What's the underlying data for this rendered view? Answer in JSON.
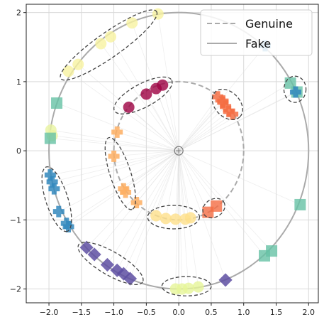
{
  "chart_data": {
    "type": "scatter",
    "title": "",
    "xlabel": "",
    "ylabel": "",
    "xlim": [
      -2.35,
      2.15
    ],
    "ylim": [
      -2.2,
      2.12
    ],
    "grid": true,
    "legend_placement": "top-right",
    "x_ticks": [
      {
        "value": -2.0,
        "label": "−2.0"
      },
      {
        "value": -1.5,
        "label": "−1.5"
      },
      {
        "value": -1.0,
        "label": "−1.0"
      },
      {
        "value": -0.5,
        "label": "−0.5"
      },
      {
        "value": 0.0,
        "label": "0.0"
      },
      {
        "value": 0.5,
        "label": "0.5"
      },
      {
        "value": 1.0,
        "label": "1.0"
      },
      {
        "value": 1.5,
        "label": "1.5"
      },
      {
        "value": 2.0,
        "label": "2.0"
      }
    ],
    "y_ticks": [
      {
        "value": -2,
        "label": "−2"
      },
      {
        "value": -1,
        "label": "−1"
      },
      {
        "value": 0,
        "label": "0"
      },
      {
        "value": 1,
        "label": "1"
      },
      {
        "value": 2,
        "label": "2"
      }
    ],
    "legend": [
      {
        "label": "Genuine",
        "style": "dashed",
        "color": "#aaaaaa"
      },
      {
        "label": "Fake",
        "style": "solid",
        "color": "#aaaaaa"
      }
    ],
    "circles": [
      {
        "name": "Genuine",
        "radius": 1.0,
        "style": "dashed",
        "color": "#aaaaaa"
      },
      {
        "name": "Fake",
        "radius": 2.0,
        "style": "solid",
        "color": "#aaaaaa"
      }
    ],
    "center_marker": {
      "x": 0,
      "y": 0
    },
    "point_groups": [
      {
        "marker": "circle",
        "color": "#f7f3a0",
        "points": [
          [
            -1.7,
            1.15
          ],
          [
            -1.55,
            1.25
          ],
          [
            -1.2,
            1.55
          ],
          [
            -1.05,
            1.65
          ],
          [
            -0.72,
            1.85
          ],
          [
            -0.32,
            1.98
          ]
        ]
      },
      {
        "marker": "circle",
        "color": "#e8f4a0",
        "points": [
          [
            -1.97,
            0.3
          ],
          [
            -1.95,
            0.22
          ]
        ]
      },
      {
        "marker": "square",
        "color": "#66c2a5",
        "points": [
          [
            -1.88,
            0.69
          ],
          [
            -1.98,
            0.18
          ],
          [
            1.72,
            0.98
          ],
          [
            1.82,
            0.85
          ],
          [
            1.87,
            -0.78
          ],
          [
            1.43,
            -1.45
          ],
          [
            1.32,
            -1.52
          ]
        ]
      },
      {
        "marker": "circle",
        "color": "#9e0142",
        "points": [
          [
            -0.77,
            0.63
          ],
          [
            -0.5,
            0.82
          ],
          [
            -0.35,
            0.9
          ],
          [
            -0.25,
            0.95
          ]
        ]
      },
      {
        "marker": "plus",
        "color": "#fdae61",
        "points": [
          [
            -0.95,
            0.27
          ],
          [
            -1.0,
            -0.08
          ],
          [
            -0.85,
            -0.55
          ],
          [
            -0.82,
            -0.6
          ],
          [
            -0.65,
            -0.75
          ]
        ]
      },
      {
        "marker": "plus",
        "color": "#f46d43",
        "points": [
          [
            0.6,
            0.78
          ],
          [
            0.68,
            0.7
          ],
          [
            0.72,
            0.64
          ],
          [
            0.77,
            0.57
          ],
          [
            0.83,
            0.53
          ],
          [
            0.68,
            0.72
          ]
        ]
      },
      {
        "marker": "circle",
        "color": "#fee08b",
        "points": [
          [
            -0.35,
            -0.94
          ],
          [
            -0.2,
            -0.98
          ],
          [
            -0.05,
            -0.99
          ],
          [
            0.1,
            -0.99
          ],
          [
            0.18,
            -0.97
          ]
        ]
      },
      {
        "marker": "square",
        "color": "#f46d43",
        "points": [
          [
            0.45,
            -0.89
          ],
          [
            0.58,
            -0.8
          ]
        ]
      },
      {
        "marker": "plus",
        "color": "#3288bd",
        "points": [
          [
            -1.98,
            -0.35
          ],
          [
            -1.95,
            -0.45
          ],
          [
            -1.92,
            -0.55
          ],
          [
            -1.85,
            -0.88
          ],
          [
            -1.73,
            -1.05
          ],
          [
            -1.7,
            -1.1
          ],
          [
            1.33,
            1.52
          ],
          [
            1.8,
            0.85
          ]
        ]
      },
      {
        "marker": "diamond",
        "color": "#5e4fa2",
        "points": [
          [
            -1.42,
            -1.4
          ],
          [
            -1.3,
            -1.5
          ],
          [
            -1.1,
            -1.65
          ],
          [
            -0.95,
            -1.73
          ],
          [
            -0.85,
            -1.78
          ],
          [
            -0.75,
            -1.85
          ],
          [
            0.72,
            -1.87
          ]
        ]
      },
      {
        "marker": "circle",
        "color": "#e6f598",
        "points": [
          [
            -0.05,
            -2.0
          ],
          [
            0.05,
            -2.0
          ],
          [
            0.15,
            -1.99
          ],
          [
            0.3,
            -1.97
          ]
        ]
      }
    ],
    "clusters": [
      {
        "center": [
          -1.08,
          1.53
        ],
        "rx": 0.9,
        "ry": 0.18,
        "angle_deg": 35
      },
      {
        "center": [
          -0.55,
          0.8
        ],
        "rx": 0.5,
        "ry": 0.17,
        "angle_deg": 28
      },
      {
        "center": [
          0.75,
          0.67
        ],
        "rx": 0.27,
        "ry": 0.18,
        "angle_deg": -45
      },
      {
        "center": [
          1.79,
          0.89
        ],
        "rx": 0.17,
        "ry": 0.19,
        "angle_deg": 0
      },
      {
        "center": [
          -0.9,
          -0.33
        ],
        "rx": 0.58,
        "ry": 0.15,
        "angle_deg": -72
      },
      {
        "center": [
          -0.08,
          -0.96
        ],
        "rx": 0.4,
        "ry": 0.17,
        "angle_deg": 0
      },
      {
        "center": [
          0.54,
          -0.83
        ],
        "rx": 0.18,
        "ry": 0.13,
        "angle_deg": 30
      },
      {
        "center": [
          -1.88,
          -0.7
        ],
        "rx": 0.52,
        "ry": 0.16,
        "angle_deg": -72
      },
      {
        "center": [
          -1.05,
          -1.63
        ],
        "rx": 0.57,
        "ry": 0.17,
        "angle_deg": -30
      },
      {
        "center": [
          0.12,
          -1.96
        ],
        "rx": 0.38,
        "ry": 0.14,
        "angle_deg": 0
      }
    ]
  }
}
